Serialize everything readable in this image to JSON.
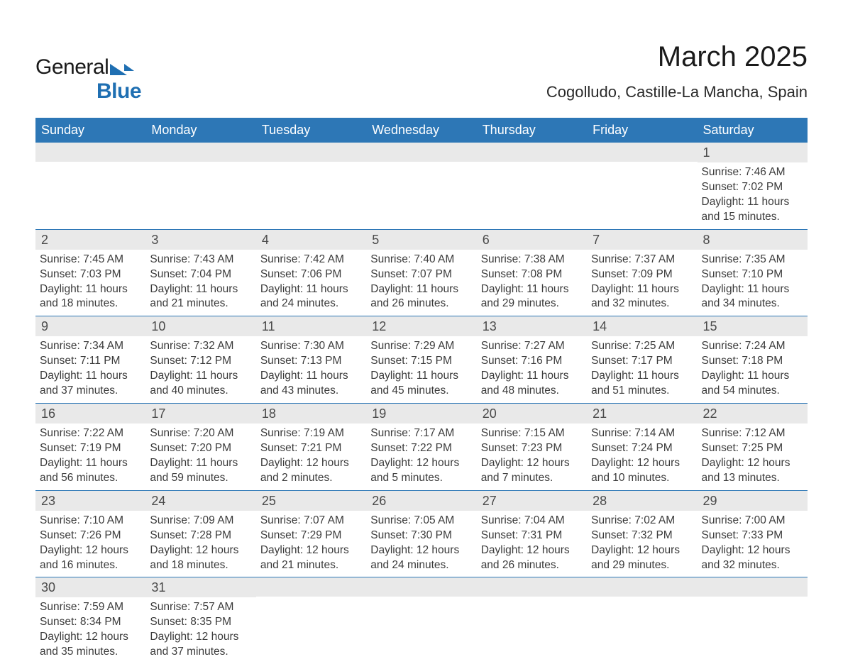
{
  "brand": {
    "word1": "General",
    "word2": "Blue"
  },
  "title": "March 2025",
  "subtitle": "Cogolludo, Castille-La Mancha, Spain",
  "colors": {
    "header_bg": "#2d77b6",
    "band_bg": "#e9e9e9",
    "divider": "#2d77b6",
    "text": "#3b3b3b",
    "page_bg": "#ffffff",
    "logo_accent": "#1f6fb2"
  },
  "typography": {
    "title_fontsize": 40,
    "subtitle_fontsize": 22,
    "header_fontsize": 18,
    "daynum_fontsize": 18,
    "info_fontsize": 15.5,
    "font_family": "Arial"
  },
  "layout": {
    "columns": 7,
    "rows": 6,
    "leading_blanks": 6
  },
  "weekdays": [
    "Sunday",
    "Monday",
    "Tuesday",
    "Wednesday",
    "Thursday",
    "Friday",
    "Saturday"
  ],
  "days": [
    {
      "n": "1",
      "sunrise": "Sunrise: 7:46 AM",
      "sunset": "Sunset: 7:02 PM",
      "d1": "Daylight: 11 hours",
      "d2": "and 15 minutes."
    },
    {
      "n": "2",
      "sunrise": "Sunrise: 7:45 AM",
      "sunset": "Sunset: 7:03 PM",
      "d1": "Daylight: 11 hours",
      "d2": "and 18 minutes."
    },
    {
      "n": "3",
      "sunrise": "Sunrise: 7:43 AM",
      "sunset": "Sunset: 7:04 PM",
      "d1": "Daylight: 11 hours",
      "d2": "and 21 minutes."
    },
    {
      "n": "4",
      "sunrise": "Sunrise: 7:42 AM",
      "sunset": "Sunset: 7:06 PM",
      "d1": "Daylight: 11 hours",
      "d2": "and 24 minutes."
    },
    {
      "n": "5",
      "sunrise": "Sunrise: 7:40 AM",
      "sunset": "Sunset: 7:07 PM",
      "d1": "Daylight: 11 hours",
      "d2": "and 26 minutes."
    },
    {
      "n": "6",
      "sunrise": "Sunrise: 7:38 AM",
      "sunset": "Sunset: 7:08 PM",
      "d1": "Daylight: 11 hours",
      "d2": "and 29 minutes."
    },
    {
      "n": "7",
      "sunrise": "Sunrise: 7:37 AM",
      "sunset": "Sunset: 7:09 PM",
      "d1": "Daylight: 11 hours",
      "d2": "and 32 minutes."
    },
    {
      "n": "8",
      "sunrise": "Sunrise: 7:35 AM",
      "sunset": "Sunset: 7:10 PM",
      "d1": "Daylight: 11 hours",
      "d2": "and 34 minutes."
    },
    {
      "n": "9",
      "sunrise": "Sunrise: 7:34 AM",
      "sunset": "Sunset: 7:11 PM",
      "d1": "Daylight: 11 hours",
      "d2": "and 37 minutes."
    },
    {
      "n": "10",
      "sunrise": "Sunrise: 7:32 AM",
      "sunset": "Sunset: 7:12 PM",
      "d1": "Daylight: 11 hours",
      "d2": "and 40 minutes."
    },
    {
      "n": "11",
      "sunrise": "Sunrise: 7:30 AM",
      "sunset": "Sunset: 7:13 PM",
      "d1": "Daylight: 11 hours",
      "d2": "and 43 minutes."
    },
    {
      "n": "12",
      "sunrise": "Sunrise: 7:29 AM",
      "sunset": "Sunset: 7:15 PM",
      "d1": "Daylight: 11 hours",
      "d2": "and 45 minutes."
    },
    {
      "n": "13",
      "sunrise": "Sunrise: 7:27 AM",
      "sunset": "Sunset: 7:16 PM",
      "d1": "Daylight: 11 hours",
      "d2": "and 48 minutes."
    },
    {
      "n": "14",
      "sunrise": "Sunrise: 7:25 AM",
      "sunset": "Sunset: 7:17 PM",
      "d1": "Daylight: 11 hours",
      "d2": "and 51 minutes."
    },
    {
      "n": "15",
      "sunrise": "Sunrise: 7:24 AM",
      "sunset": "Sunset: 7:18 PM",
      "d1": "Daylight: 11 hours",
      "d2": "and 54 minutes."
    },
    {
      "n": "16",
      "sunrise": "Sunrise: 7:22 AM",
      "sunset": "Sunset: 7:19 PM",
      "d1": "Daylight: 11 hours",
      "d2": "and 56 minutes."
    },
    {
      "n": "17",
      "sunrise": "Sunrise: 7:20 AM",
      "sunset": "Sunset: 7:20 PM",
      "d1": "Daylight: 11 hours",
      "d2": "and 59 minutes."
    },
    {
      "n": "18",
      "sunrise": "Sunrise: 7:19 AM",
      "sunset": "Sunset: 7:21 PM",
      "d1": "Daylight: 12 hours",
      "d2": "and 2 minutes."
    },
    {
      "n": "19",
      "sunrise": "Sunrise: 7:17 AM",
      "sunset": "Sunset: 7:22 PM",
      "d1": "Daylight: 12 hours",
      "d2": "and 5 minutes."
    },
    {
      "n": "20",
      "sunrise": "Sunrise: 7:15 AM",
      "sunset": "Sunset: 7:23 PM",
      "d1": "Daylight: 12 hours",
      "d2": "and 7 minutes."
    },
    {
      "n": "21",
      "sunrise": "Sunrise: 7:14 AM",
      "sunset": "Sunset: 7:24 PM",
      "d1": "Daylight: 12 hours",
      "d2": "and 10 minutes."
    },
    {
      "n": "22",
      "sunrise": "Sunrise: 7:12 AM",
      "sunset": "Sunset: 7:25 PM",
      "d1": "Daylight: 12 hours",
      "d2": "and 13 minutes."
    },
    {
      "n": "23",
      "sunrise": "Sunrise: 7:10 AM",
      "sunset": "Sunset: 7:26 PM",
      "d1": "Daylight: 12 hours",
      "d2": "and 16 minutes."
    },
    {
      "n": "24",
      "sunrise": "Sunrise: 7:09 AM",
      "sunset": "Sunset: 7:28 PM",
      "d1": "Daylight: 12 hours",
      "d2": "and 18 minutes."
    },
    {
      "n": "25",
      "sunrise": "Sunrise: 7:07 AM",
      "sunset": "Sunset: 7:29 PM",
      "d1": "Daylight: 12 hours",
      "d2": "and 21 minutes."
    },
    {
      "n": "26",
      "sunrise": "Sunrise: 7:05 AM",
      "sunset": "Sunset: 7:30 PM",
      "d1": "Daylight: 12 hours",
      "d2": "and 24 minutes."
    },
    {
      "n": "27",
      "sunrise": "Sunrise: 7:04 AM",
      "sunset": "Sunset: 7:31 PM",
      "d1": "Daylight: 12 hours",
      "d2": "and 26 minutes."
    },
    {
      "n": "28",
      "sunrise": "Sunrise: 7:02 AM",
      "sunset": "Sunset: 7:32 PM",
      "d1": "Daylight: 12 hours",
      "d2": "and 29 minutes."
    },
    {
      "n": "29",
      "sunrise": "Sunrise: 7:00 AM",
      "sunset": "Sunset: 7:33 PM",
      "d1": "Daylight: 12 hours",
      "d2": "and 32 minutes."
    },
    {
      "n": "30",
      "sunrise": "Sunrise: 7:59 AM",
      "sunset": "Sunset: 8:34 PM",
      "d1": "Daylight: 12 hours",
      "d2": "and 35 minutes."
    },
    {
      "n": "31",
      "sunrise": "Sunrise: 7:57 AM",
      "sunset": "Sunset: 8:35 PM",
      "d1": "Daylight: 12 hours",
      "d2": "and 37 minutes."
    }
  ]
}
